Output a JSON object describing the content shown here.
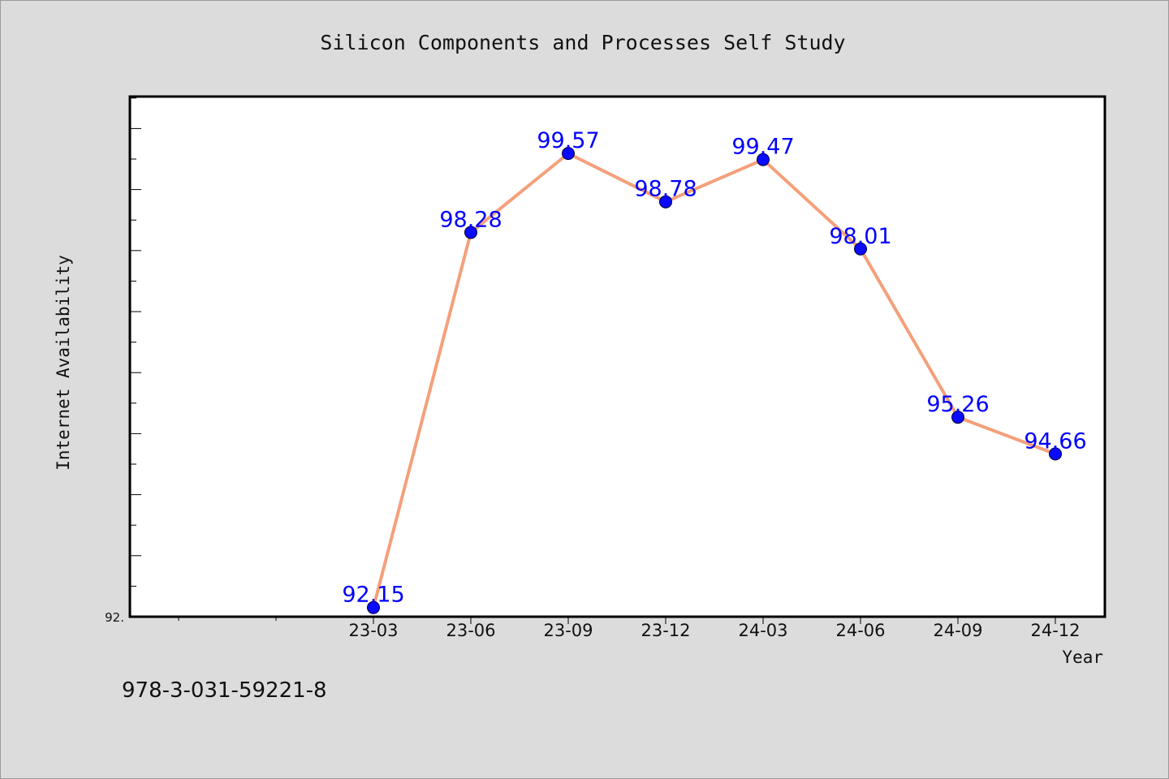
{
  "chart_data": {
    "type": "line",
    "title": "Silicon Components and Processes Self Study",
    "xlabel": "Year",
    "ylabel": "Internet Availability",
    "categories": [
      "23-03",
      "23-06",
      "23-09",
      "23-12",
      "24-03",
      "24-06",
      "24-09",
      "24-12"
    ],
    "series": [
      {
        "values": [
          92.15,
          98.28,
          99.57,
          98.78,
          99.47,
          98.01,
          95.26,
          94.66
        ]
      }
    ],
    "data_labels": [
      "92.15",
      "98.28",
      "99.57",
      "98.78",
      "99.47",
      "98.01",
      "95.26",
      "94.66"
    ],
    "y_tick_label": "92.",
    "ylim": [
      92.0,
      100.5
    ],
    "colors": {
      "line": "#f4a07a",
      "marker": "#0a0aff",
      "label": "#0000ff",
      "background": "#dcdcdc",
      "plot_background": "#ffffff"
    },
    "grid": false,
    "legend": "none"
  },
  "footer": {
    "isbn": "978-3-031-59221-8"
  }
}
